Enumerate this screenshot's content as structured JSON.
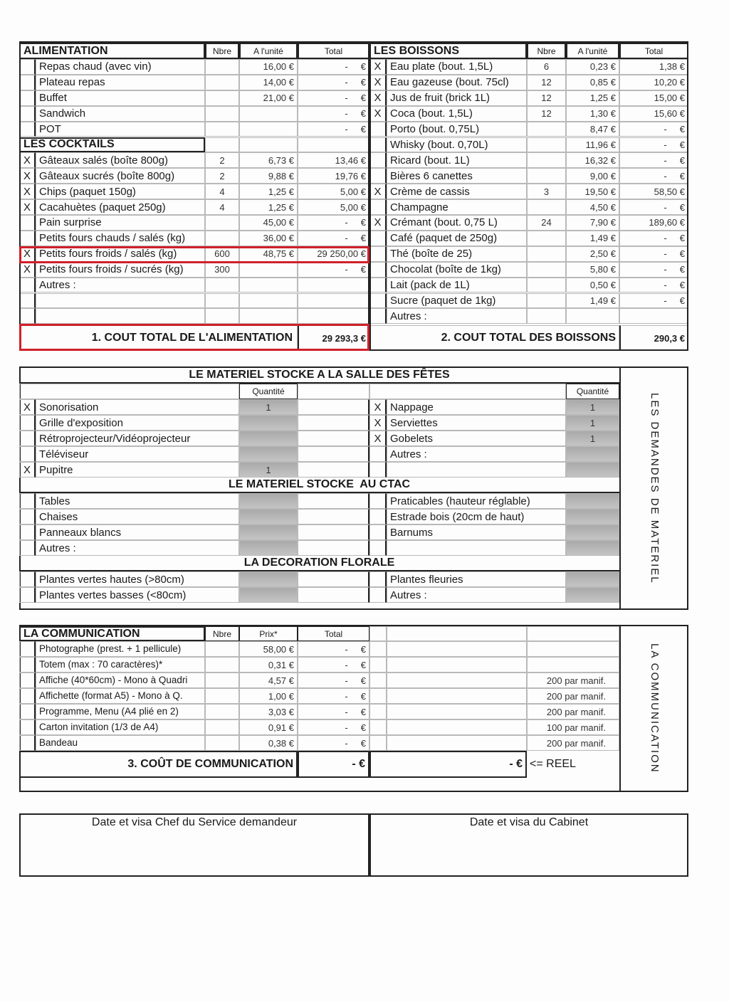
{
  "food": {
    "title": "ALIMENTATION",
    "cols": [
      "Nbre",
      "A l'unité",
      "Total"
    ],
    "rows": [
      {
        "check": "",
        "label": "Repas chaud (avec vin)",
        "qty": "",
        "unit": "16,00 €",
        "total": "-     €"
      },
      {
        "check": "",
        "label": "Plateau repas",
        "qty": "",
        "unit": "14,00 €",
        "total": "-     €"
      },
      {
        "check": "",
        "label": "Buffet",
        "qty": "",
        "unit": "21,00 €",
        "total": "-     €"
      },
      {
        "check": "",
        "label": "Sandwich",
        "qty": "",
        "unit": "",
        "total": "-     €"
      },
      {
        "check": "",
        "label": "POT",
        "qty": "",
        "unit": "",
        "total": "-     €"
      }
    ],
    "cocktails_title": "LES COCKTAILS",
    "cocktails": [
      {
        "check": "X",
        "label": "Gâteaux salés (boîte 800g)",
        "qty": "2",
        "unit": "6,73 €",
        "total": "13,46 €"
      },
      {
        "check": "X",
        "label": "Gâteaux sucrés (boîte 800g)",
        "qty": "2",
        "unit": "9,88 €",
        "total": "19,76 €"
      },
      {
        "check": "X",
        "label": "Chips (paquet 150g)",
        "qty": "4",
        "unit": "1,25 €",
        "total": "5,00 €"
      },
      {
        "check": "X",
        "label": "Cacahuètes (paquet 250g)",
        "qty": "4",
        "unit": "1,25 €",
        "total": "5,00 €"
      },
      {
        "check": "",
        "label": "Pain surprise",
        "qty": "",
        "unit": "45,00 €",
        "total": "-     €"
      },
      {
        "check": "",
        "label": "Petits fours chauds / salés (kg)",
        "qty": "",
        "unit": "36,00 €",
        "total": "-     €"
      },
      {
        "check": "X",
        "label": "Petits fours froids / salés (kg)",
        "qty": "600",
        "unit": "48,75 €",
        "total": "29 250,00 €"
      },
      {
        "check": "X",
        "label": "Petits fours froids / sucrés (kg)",
        "qty": "300",
        "unit": "",
        "total": "-     €"
      },
      {
        "check": "",
        "label": "Autres :",
        "qty": "",
        "unit": "",
        "total": ""
      },
      {
        "check": "",
        "label": "",
        "qty": "",
        "unit": "",
        "total": ""
      },
      {
        "check": "",
        "label": "",
        "qty": "",
        "unit": "",
        "total": ""
      }
    ],
    "total_label": "1. COUT TOTAL DE L'ALIMENTATION",
    "total_value": "29 293,3 €"
  },
  "drinks": {
    "title": "LES BOISSONS",
    "cols": [
      "Nbre",
      "A l'unité",
      "Total"
    ],
    "rows": [
      {
        "check": "X",
        "label": "Eau plate (bout. 1,5L)",
        "qty": "6",
        "unit": "0,23 €",
        "total": "1,38 €"
      },
      {
        "check": "X",
        "label": "Eau gazeuse (bout. 75cl)",
        "qty": "12",
        "unit": "0,85 €",
        "total": "10,20 €"
      },
      {
        "check": "X",
        "label": "Jus de fruit (brick 1L)",
        "qty": "12",
        "unit": "1,25 €",
        "total": "15,00 €"
      },
      {
        "check": "X",
        "label": "Coca (bout. 1,5L)",
        "qty": "12",
        "unit": "1,30 €",
        "total": "15,60 €"
      },
      {
        "check": "",
        "label": "Porto (bout. 0,75L)",
        "qty": "",
        "unit": "8,47 €",
        "total": "-     €"
      },
      {
        "check": "",
        "label": "Whisky (bout. 0,70L)",
        "qty": "",
        "unit": "11,96 €",
        "total": "-     €"
      },
      {
        "check": "",
        "label": "Ricard (bout. 1L)",
        "qty": "",
        "unit": "16,32 €",
        "total": "-     €"
      },
      {
        "check": "",
        "label": "Bières 6 canettes",
        "qty": "",
        "unit": "9,00 €",
        "total": "-     €"
      },
      {
        "check": "X",
        "label": "Crème de cassis",
        "qty": "3",
        "unit": "19,50 €",
        "total": "58,50 €"
      },
      {
        "check": "",
        "label": "Champagne",
        "qty": "",
        "unit": "4,50 €",
        "total": "-     €"
      },
      {
        "check": "X",
        "label": "Crémant (bout. 0,75 L)",
        "qty": "24",
        "unit": "7,90 €",
        "total": "189,60 €"
      },
      {
        "check": "",
        "label": "Café (paquet de 250g)",
        "qty": "",
        "unit": "1,49 €",
        "total": "-     €"
      },
      {
        "check": "",
        "label": "Thé (boîte de 25)",
        "qty": "",
        "unit": "2,50 €",
        "total": "-     €"
      },
      {
        "check": "",
        "label": "Chocolat (boîte de 1kg)",
        "qty": "",
        "unit": "5,80 €",
        "total": "-     €"
      },
      {
        "check": "",
        "label": "Lait (pack de 1L)",
        "qty": "",
        "unit": "0,50 €",
        "total": "-     €"
      },
      {
        "check": "",
        "label": "Sucre (paquet de 1kg)",
        "qty": "",
        "unit": "1,49 €",
        "total": "-     €"
      },
      {
        "check": "",
        "label": "Autres :",
        "qty": "",
        "unit": "",
        "total": ""
      }
    ],
    "total_label": "2. COUT TOTAL DES BOISSONS",
    "total_value": "290,3 €"
  },
  "material": {
    "side_label": "LES DEMANDES DE MATERIEL",
    "qty_header": "Quantité",
    "sections": [
      {
        "title": "LE MATERIEL STOCKE A LA SALLE DES FÊTES",
        "left": [
          {
            "check": "X",
            "label": "Sonorisation",
            "qty": "1"
          },
          {
            "check": "",
            "label": "Grille d'exposition",
            "qty": ""
          },
          {
            "check": "",
            "label": "Rétroprojecteur/Vidéoprojecteur",
            "qty": ""
          },
          {
            "check": "",
            "label": "Téléviseur",
            "qty": ""
          },
          {
            "check": "X",
            "label": "Pupitre",
            "qty": "1"
          }
        ],
        "right": [
          {
            "check": "X",
            "label": "Nappage",
            "qty": "1"
          },
          {
            "check": "X",
            "label": "Serviettes",
            "qty": "1"
          },
          {
            "check": "X",
            "label": "Gobelets",
            "qty": "1"
          },
          {
            "check": "",
            "label": "Autres :",
            "qty": ""
          },
          {
            "check": "",
            "label": "",
            "qty": ""
          }
        ]
      },
      {
        "title": "LE MATERIEL STOCKE  AU CTAC",
        "left": [
          {
            "check": "",
            "label": "Tables",
            "qty": ""
          },
          {
            "check": "",
            "label": "Chaises",
            "qty": ""
          },
          {
            "check": "",
            "label": "Panneaux blancs",
            "qty": ""
          },
          {
            "check": "",
            "label": "Autres :",
            "qty": ""
          }
        ],
        "right": [
          {
            "check": "",
            "label": "Praticables (hauteur réglable)",
            "qty": ""
          },
          {
            "check": "",
            "label": "Estrade bois (20cm de haut)",
            "qty": ""
          },
          {
            "check": "",
            "label": "Barnums",
            "qty": ""
          },
          {
            "check": "",
            "label": "",
            "qty": ""
          }
        ]
      },
      {
        "title": "LA DECORATION FLORALE",
        "left": [
          {
            "check": "",
            "label": "Plantes vertes hautes (>80cm)",
            "qty": ""
          },
          {
            "check": "",
            "label": "Plantes vertes basses (<80cm)",
            "qty": ""
          }
        ],
        "right": [
          {
            "check": "",
            "label": "Plantes fleuries",
            "qty": ""
          },
          {
            "check": "",
            "label": "Autres :",
            "qty": ""
          }
        ]
      }
    ]
  },
  "communication": {
    "title": "LA COMMUNICATION",
    "side_label": "LA COMMUNICATION",
    "cols": [
      "Nbre",
      "Prix*",
      "Total"
    ],
    "rows": [
      {
        "label": "Photographe (prest. + 1 pellicule)",
        "price": "58,00 €",
        "total": "-     €",
        "note": ""
      },
      {
        "label": "Totem (max : 70 caractères)*",
        "price": "0,31 €",
        "total": "-     €",
        "note": ""
      },
      {
        "label": "Affiche (40*60cm) - Mono à Quadri",
        "price": "4,57 €",
        "total": "-     €",
        "note": "200 par manif."
      },
      {
        "label": "Affichette (format A5) - Mono à Q.",
        "price": "1,00 €",
        "total": "-     €",
        "note": "200 par manif."
      },
      {
        "label": "Programme, Menu (A4 plié en 2)",
        "price": "3,03 €",
        "total": "-     €",
        "note": "200 par manif."
      },
      {
        "label": "Carton invitation (1/3 de A4)",
        "price": "0,91 €",
        "total": "-     €",
        "note": "100 par manif."
      },
      {
        "label": "Bandeau",
        "price": "0,38 €",
        "total": "-     €",
        "note": "200 par manif."
      }
    ],
    "total_label": "3. COÛT DE COMMUNICATION",
    "total_value": "- €",
    "real_value": "- €",
    "real_label": "<= REEL"
  },
  "signatures": {
    "left": "Date et visa  Chef du Service demandeur",
    "right": "Date et visa du Cabinet"
  },
  "colors": {
    "highlight": "#d0202a",
    "shade": "#b5b5b5"
  }
}
